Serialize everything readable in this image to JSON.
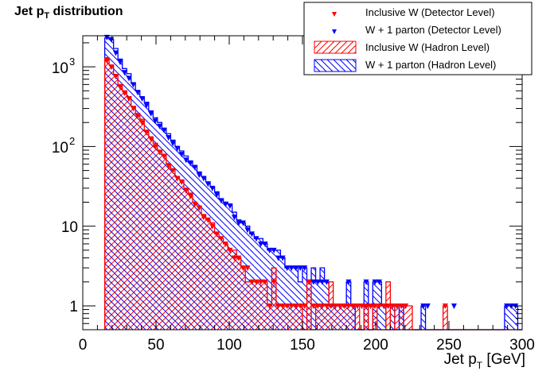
{
  "chart_data": {
    "type": "bar",
    "title": "Jet p",
    "title_sub": "T",
    "title_suffix": " distribution",
    "xlabel": "Jet p",
    "xlabel_sub": "T",
    "xlabel_suffix": " [GeV]",
    "ylabel": "",
    "xlim": [
      0,
      300
    ],
    "ylim": [
      0.5,
      2300
    ],
    "yscale": "log",
    "grid": false,
    "legend_position": "top-right",
    "x_ticks": [
      "0",
      "50",
      "100",
      "150",
      "200",
      "250",
      "300"
    ],
    "y_ticks": [
      {
        "value": 1,
        "label": "1",
        "exp": ""
      },
      {
        "value": 10,
        "label": "10",
        "exp": ""
      },
      {
        "value": 100,
        "label": "10",
        "exp": "2"
      },
      {
        "value": 1000,
        "label": "10",
        "exp": "3"
      }
    ],
    "bin_start": 15,
    "bin_width": 3,
    "legend": [
      {
        "label": "Inclusive W (Detector Level)",
        "kind": "marker",
        "color": "#ff0000"
      },
      {
        "label": "W + 1 parton (Detector Level)",
        "kind": "marker",
        "color": "#0000ff"
      },
      {
        "label": "Inclusive W (Hadron Level)",
        "kind": "hatch",
        "color": "#ff0000"
      },
      {
        "label": "W + 1 parton (Hadron Level)",
        "kind": "hatch",
        "color": "#0000ff"
      }
    ],
    "series": [
      {
        "name": "W + 1 parton (Hadron Level)",
        "color": "#0000ff",
        "style": "hatch-back",
        "values": [
          2300,
          2200,
          1700,
          1250,
          950,
          820,
          620,
          500,
          420,
          360,
          280,
          230,
          200,
          170,
          145,
          120,
          100,
          88,
          76,
          66,
          58,
          48,
          42,
          36,
          31,
          27,
          22,
          20,
          19,
          15,
          12,
          11,
          10,
          8,
          7,
          7,
          6,
          5,
          5,
          5,
          4,
          3,
          3,
          3,
          2,
          3,
          2,
          3,
          2,
          3,
          2,
          1,
          1,
          1,
          1,
          2,
          1,
          0,
          0,
          2,
          0,
          2,
          2,
          1,
          0,
          1,
          0,
          1,
          0,
          0,
          0,
          0,
          1,
          0,
          0,
          0,
          0,
          0,
          0,
          0,
          0,
          0,
          0,
          0,
          0,
          0,
          0,
          0,
          0,
          0,
          0,
          1,
          1,
          1,
          0,
          0,
          0
        ]
      },
      {
        "name": "Inclusive W (Hadron Level)",
        "color": "#ff0000",
        "style": "hatch-fwd",
        "values": [
          1300,
          1050,
          800,
          600,
          500,
          420,
          320,
          260,
          220,
          160,
          130,
          110,
          90,
          80,
          60,
          52,
          42,
          38,
          30,
          26,
          20,
          18,
          14,
          12,
          11,
          8,
          7,
          6,
          5,
          5,
          4,
          3,
          2,
          2,
          2,
          2,
          2,
          1,
          3,
          1,
          1,
          1,
          1,
          1,
          1,
          0,
          2,
          0,
          1,
          1,
          1,
          2,
          1,
          1,
          1,
          1,
          1,
          1,
          0,
          1,
          0,
          1,
          0,
          0,
          2,
          0,
          1,
          1,
          1,
          1,
          0,
          0,
          0,
          0,
          0,
          0,
          0,
          1,
          0,
          0,
          0,
          0,
          0,
          0,
          0,
          0,
          0,
          0,
          0,
          0,
          0,
          0,
          0,
          0,
          0,
          0,
          0
        ]
      },
      {
        "name": "W + 1 parton (Detector Level)",
        "color": "#0000ff",
        "style": "marker",
        "values": [
          2350,
          2200,
          1500,
          1150,
          850,
          720,
          600,
          480,
          400,
          330,
          260,
          210,
          180,
          160,
          130,
          110,
          95,
          80,
          68,
          62,
          55,
          44,
          40,
          34,
          30,
          25,
          21,
          19,
          18,
          13,
          11,
          11,
          9,
          8,
          7,
          6,
          6,
          5,
          5,
          4,
          4,
          3,
          3,
          3,
          3,
          3,
          2,
          2,
          2,
          2,
          2,
          1,
          1,
          1,
          1,
          2,
          1,
          1,
          1,
          2,
          1,
          2,
          2,
          1,
          1,
          1,
          1,
          1,
          0,
          0,
          0,
          0,
          1,
          1,
          0,
          0,
          0,
          0,
          0,
          1,
          0,
          0,
          0,
          0,
          0,
          0,
          0,
          0,
          0,
          0,
          0,
          1,
          1,
          1,
          0,
          0,
          0
        ]
      },
      {
        "name": "Inclusive W (Detector Level)",
        "color": "#ff0000",
        "style": "marker",
        "values": [
          1200,
          1000,
          760,
          560,
          470,
          400,
          300,
          240,
          200,
          150,
          125,
          100,
          85,
          75,
          58,
          50,
          40,
          36,
          28,
          24,
          19,
          17,
          13,
          12,
          10,
          8,
          7,
          6,
          5,
          4,
          4,
          3,
          3,
          2,
          2,
          2,
          2,
          1,
          2,
          1,
          1,
          1,
          1,
          1,
          1,
          1,
          2,
          1,
          1,
          1,
          1,
          1,
          1,
          1,
          1,
          1,
          1,
          1,
          1,
          1,
          1,
          1,
          1,
          1,
          1,
          1,
          1,
          1,
          1,
          0,
          0,
          0,
          0,
          0,
          0,
          0,
          0,
          1,
          0,
          0,
          0,
          0,
          0,
          0,
          0,
          0,
          0,
          0,
          0,
          0,
          0,
          0,
          0,
          0,
          0,
          0,
          0
        ]
      }
    ]
  }
}
